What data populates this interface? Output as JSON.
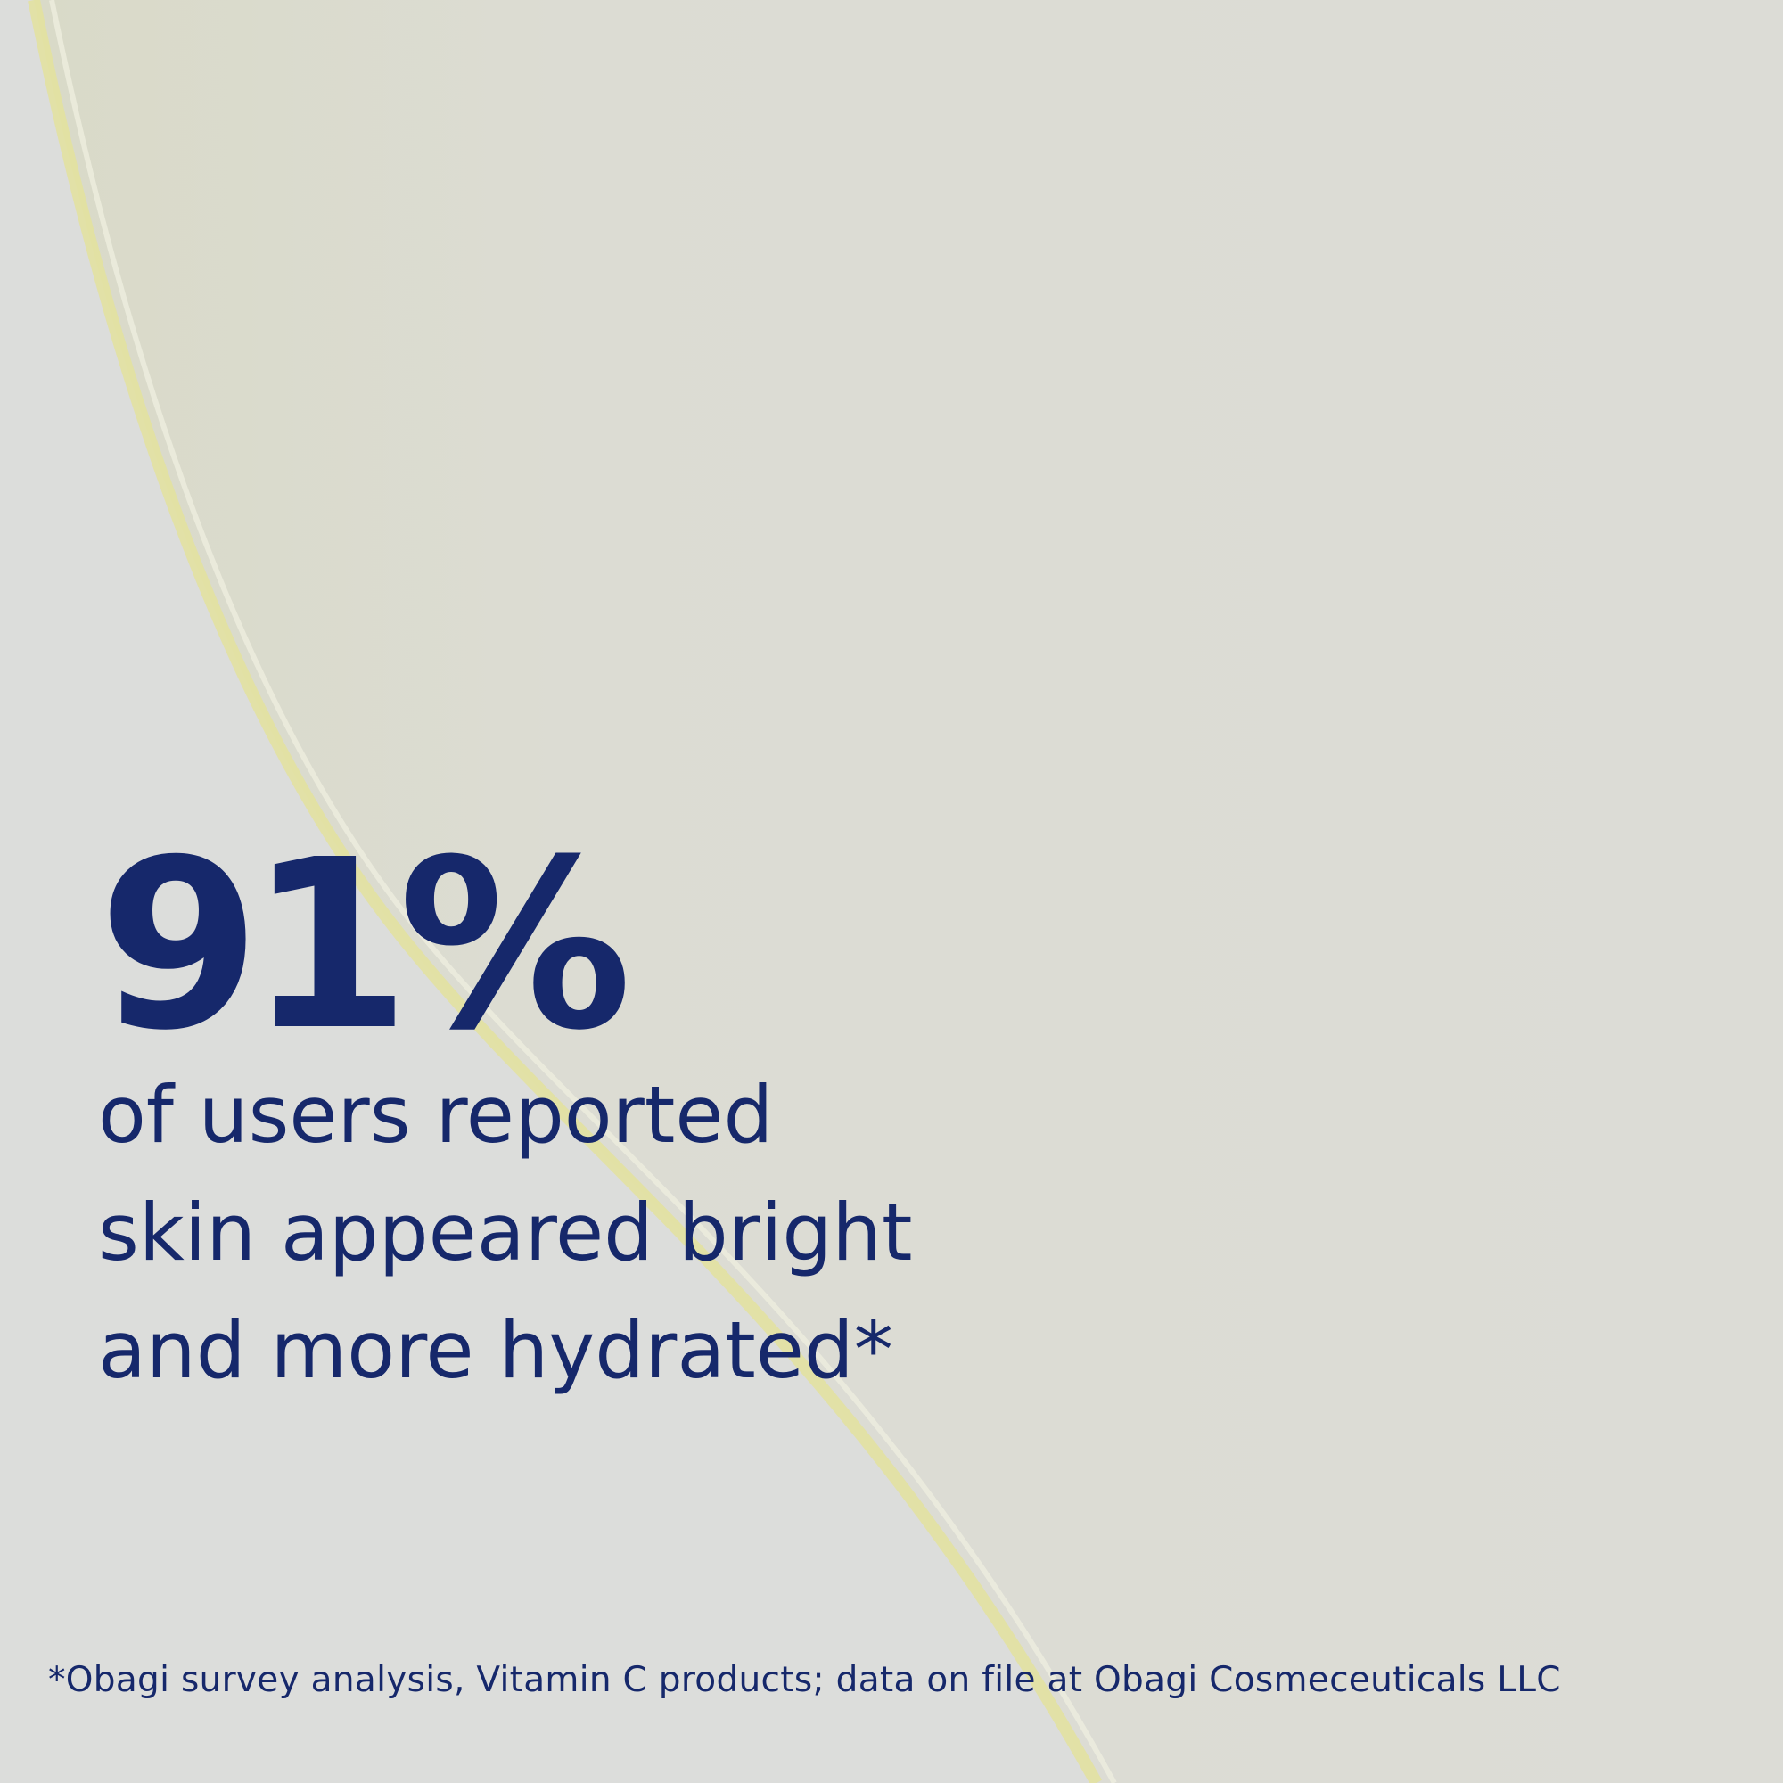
{
  "stat": "91%",
  "description": {
    "lines": [
      "of users reported",
      "skin appeared bright",
      "and more hydrated*"
    ]
  },
  "footnote": "*Obagi survey analysis, Vitamin C products; data on file at Obagi Cosmeceuticals LLC"
}
